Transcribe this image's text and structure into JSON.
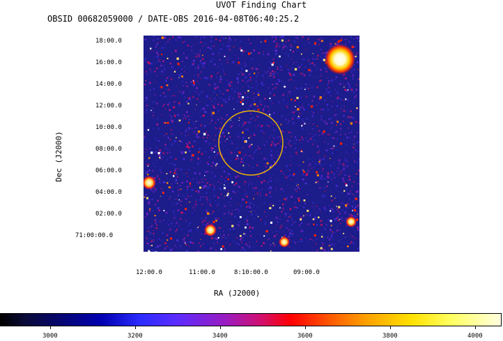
{
  "header": {
    "title": "UVOT Finding Chart",
    "subtitle": "OBSID 00682059000 / DATE-OBS 2016-04-08T06:40:25.2"
  },
  "axes": {
    "ylabel": "Dec (J2000)",
    "xlabel": "RA (J2000)",
    "dec_ticks": [
      "18:00.0",
      "16:00.0",
      "14:00.0",
      "12:00.0",
      "10:00.0",
      "08:00.0",
      "06:00.0",
      "04:00.0",
      "02:00.0",
      "71:00:00.0"
    ],
    "ra_ticks": [
      "12:00.0",
      "11:00.0",
      "8:10:00.0",
      "09:00.0"
    ]
  },
  "colorbar": {
    "ticks": [
      "3000",
      "3200",
      "3400",
      "3600",
      "3800",
      "4000"
    ]
  },
  "colors": {
    "sky_background": "#1c1c8a",
    "circle": "#f2b600"
  }
}
